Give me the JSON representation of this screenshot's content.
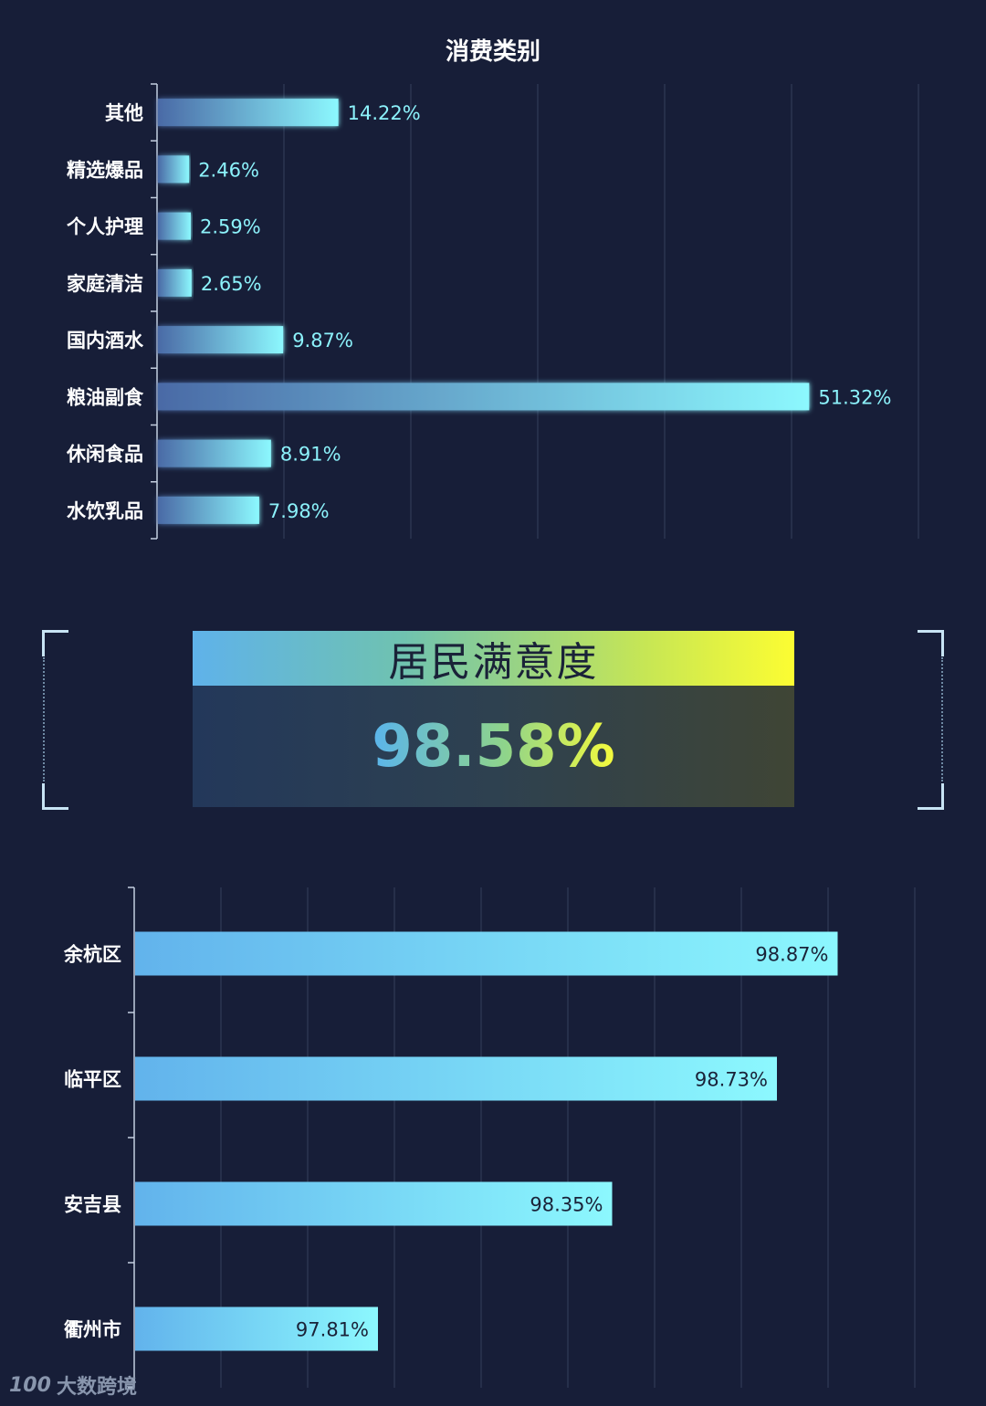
{
  "chart_data": [
    {
      "type": "bar",
      "orientation": "horizontal",
      "title": "消费类别",
      "categories": [
        "其他",
        "精选爆品",
        "个人护理",
        "家庭清洁",
        "国内酒水",
        "粮油副食",
        "休闲食品",
        "水饮乳品"
      ],
      "values": [
        14.22,
        2.46,
        2.59,
        2.65,
        9.87,
        51.32,
        8.91,
        7.98
      ],
      "data_labels": [
        "14.22%",
        "2.46%",
        "2.59%",
        "2.65%",
        "9.87%",
        "51.32%",
        "8.91%",
        "7.98%"
      ],
      "xlim": [
        0,
        60
      ],
      "grid": true,
      "colors": {
        "bar_start": "#4a6aa6",
        "bar_end": "#8cf8fe",
        "label": "#8cf2fb"
      }
    },
    {
      "type": "bar",
      "orientation": "horizontal",
      "categories": [
        "余杭区",
        "临平区",
        "安吉县",
        "衢州市"
      ],
      "values": [
        98.87,
        98.73,
        98.35,
        97.81
      ],
      "data_labels": [
        "98.87%",
        "98.73%",
        "98.35%",
        "97.81%"
      ],
      "xlim": [
        97.25,
        99.25
      ],
      "grid": true,
      "colors": {
        "bar_start": "#62b3ec",
        "bar_end": "#8cf8fe",
        "label": "#1a2238"
      }
    }
  ],
  "satisfaction": {
    "title": "居民满意度",
    "value": "98.58%"
  },
  "watermark": {
    "logo": "100",
    "text": "大数跨境"
  }
}
